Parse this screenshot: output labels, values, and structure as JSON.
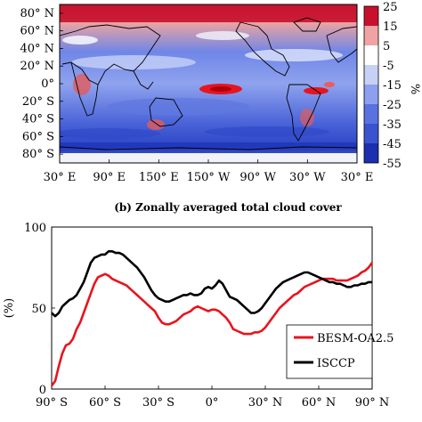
{
  "chart_data": [
    {
      "type": "heatmap",
      "unit_label": "%",
      "colorbar": {
        "ticks": [
          "25",
          "15",
          "5",
          "-5",
          "-15",
          "-25",
          "-35",
          "-45",
          "-55"
        ],
        "range": [
          -55,
          25
        ]
      },
      "x_tick_labels": [
        "30° E",
        "90° E",
        "150° E",
        "150° W",
        "90° W",
        "30° W",
        "30° E"
      ],
      "y_tick_labels": [
        "80° N",
        "60° N",
        "40° N",
        "20° N",
        "0°",
        "20° S",
        "40° S",
        "60° S",
        "80° S"
      ]
    },
    {
      "type": "line",
      "title": "(b) Zonally averaged total cloud cover",
      "ylabel": "(%)",
      "ylim": [
        0,
        100
      ],
      "y_ticks": [
        "100",
        "50",
        "0"
      ],
      "xlim": [
        -90,
        90
      ],
      "x_tick_labels": [
        "90° S",
        "60° S",
        "30° S",
        "0°",
        "30° N",
        "60° N",
        "90° N"
      ],
      "x": [
        -90,
        -88,
        -86,
        -84,
        -82,
        -80,
        -78,
        -76,
        -74,
        -72,
        -70,
        -68,
        -66,
        -64,
        -62,
        -60,
        -58,
        -56,
        -54,
        -52,
        -50,
        -48,
        -46,
        -44,
        -42,
        -40,
        -38,
        -36,
        -34,
        -32,
        -30,
        -28,
        -26,
        -24,
        -22,
        -20,
        -18,
        -16,
        -14,
        -12,
        -10,
        -8,
        -6,
        -4,
        -2,
        0,
        2,
        4,
        6,
        8,
        10,
        12,
        14,
        16,
        18,
        20,
        22,
        24,
        26,
        28,
        30,
        32,
        34,
        36,
        38,
        40,
        42,
        44,
        46,
        48,
        50,
        52,
        54,
        56,
        58,
        60,
        62,
        64,
        66,
        68,
        70,
        72,
        74,
        76,
        78,
        80,
        82,
        84,
        86,
        88,
        90
      ],
      "series": [
        {
          "name": "BESM-OA2.5",
          "color": "#e8141e",
          "values": [
            2,
            5,
            14,
            22,
            27,
            28,
            31,
            37,
            41,
            47,
            53,
            59,
            65,
            69,
            70,
            71,
            70,
            68,
            67,
            66,
            65,
            64,
            62,
            60,
            58,
            56,
            54,
            52,
            50,
            48,
            44,
            41,
            40,
            40,
            41,
            42,
            44,
            46,
            47,
            48,
            50,
            51,
            50,
            49,
            48,
            49,
            49,
            48,
            46,
            44,
            41,
            37,
            36,
            35,
            34,
            34,
            34,
            35,
            35,
            36,
            38,
            41,
            44,
            47,
            50,
            52,
            54,
            56,
            58,
            59,
            61,
            63,
            64,
            65,
            66,
            67,
            68,
            68,
            68,
            68,
            67,
            67,
            67,
            67,
            68,
            69,
            70,
            72,
            73,
            75,
            78
          ]
        },
        {
          "name": "ISCCP",
          "color": "#000000",
          "values": [
            47,
            45,
            47,
            51,
            53,
            55,
            56,
            58,
            62,
            66,
            72,
            78,
            81,
            82,
            83,
            83,
            85,
            85,
            84,
            84,
            83,
            81,
            79,
            77,
            75,
            72,
            69,
            65,
            61,
            58,
            56,
            55,
            54,
            54,
            55,
            56,
            57,
            58,
            58,
            59,
            58,
            58,
            59,
            62,
            63,
            62,
            64,
            67,
            65,
            61,
            57,
            56,
            55,
            53,
            51,
            49,
            47,
            47,
            48,
            50,
            53,
            56,
            59,
            62,
            64,
            66,
            67,
            68,
            69,
            70,
            71,
            72,
            72,
            71,
            70,
            69,
            68,
            67,
            66,
            66,
            65,
            65,
            64,
            63,
            63,
            64,
            64,
            65,
            65,
            66,
            66
          ]
        }
      ],
      "legend": "lower-right"
    }
  ]
}
